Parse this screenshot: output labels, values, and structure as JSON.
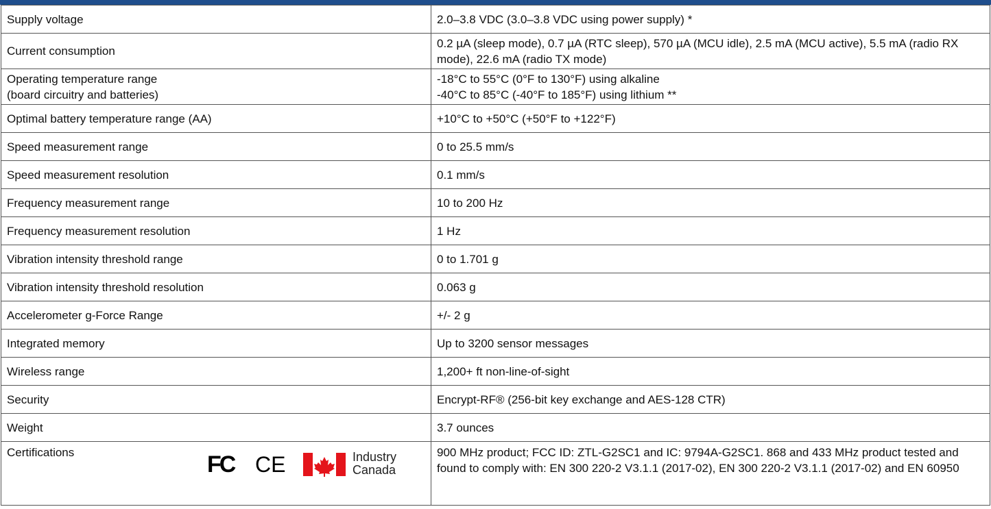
{
  "table": {
    "rows": [
      [
        "Supply voltage",
        "2.0–3.8 VDC (3.0–3.8 VDC using power supply) *"
      ],
      [
        "Current consumption",
        "0.2 µA (sleep mode), 0.7 µA (RTC sleep), 570 µA (MCU idle), 2.5 mA (MCU active), 5.5 mA (radio RX mode), 22.6 mA (radio TX mode)"
      ],
      [
        [
          "Operating temperature range",
          "(board circuitry and batteries)"
        ],
        [
          "-18°C to 55°C (0°F to 130°F) using alkaline",
          "-40°C to 85°C (-40°F to 185°F) using lithium **"
        ]
      ],
      [
        "Optimal battery temperature range (AA)",
        "+10°C to +50°C  (+50°F  to +122°F)"
      ],
      [
        "Speed measurement range",
        "0 to 25.5 mm/s"
      ],
      [
        "Speed measurement resolution",
        "0.1 mm/s"
      ],
      [
        "Frequency measurement range",
        "10 to 200 Hz"
      ],
      [
        "Frequency measurement resolution",
        "1 Hz"
      ],
      [
        "Vibration intensity threshold range",
        "0 to 1.701 g"
      ],
      [
        "Vibration intensity threshold resolution",
        "0.063 g"
      ],
      [
        "Accelerometer g-Force Range",
        "+/- 2 g"
      ],
      [
        "Integrated memory",
        "Up to 3200 sensor messages"
      ],
      [
        "Wireless range",
        "1,200+ ft non-line-of-sight"
      ],
      [
        "Security",
        "Encrypt-RF® (256-bit key exchange and AES-128 CTR)"
      ],
      [
        "Weight",
        "3.7 ounces"
      ],
      [
        "Certifications",
        "900 MHz product; FCC ID: ZTL-G2SC1 and IC: 9794A-G2SC1. 868 and 433 MHz product tested and found to comply with: EN 300 220-2 V3.1.1 (2017-02), EN 300 220-2 V3.1.1 (2017-02) and EN 60950"
      ]
    ],
    "cert_icons": {
      "fcc": "FC",
      "ce": "CE",
      "ic": [
        "Industry",
        "Canada"
      ]
    }
  }
}
